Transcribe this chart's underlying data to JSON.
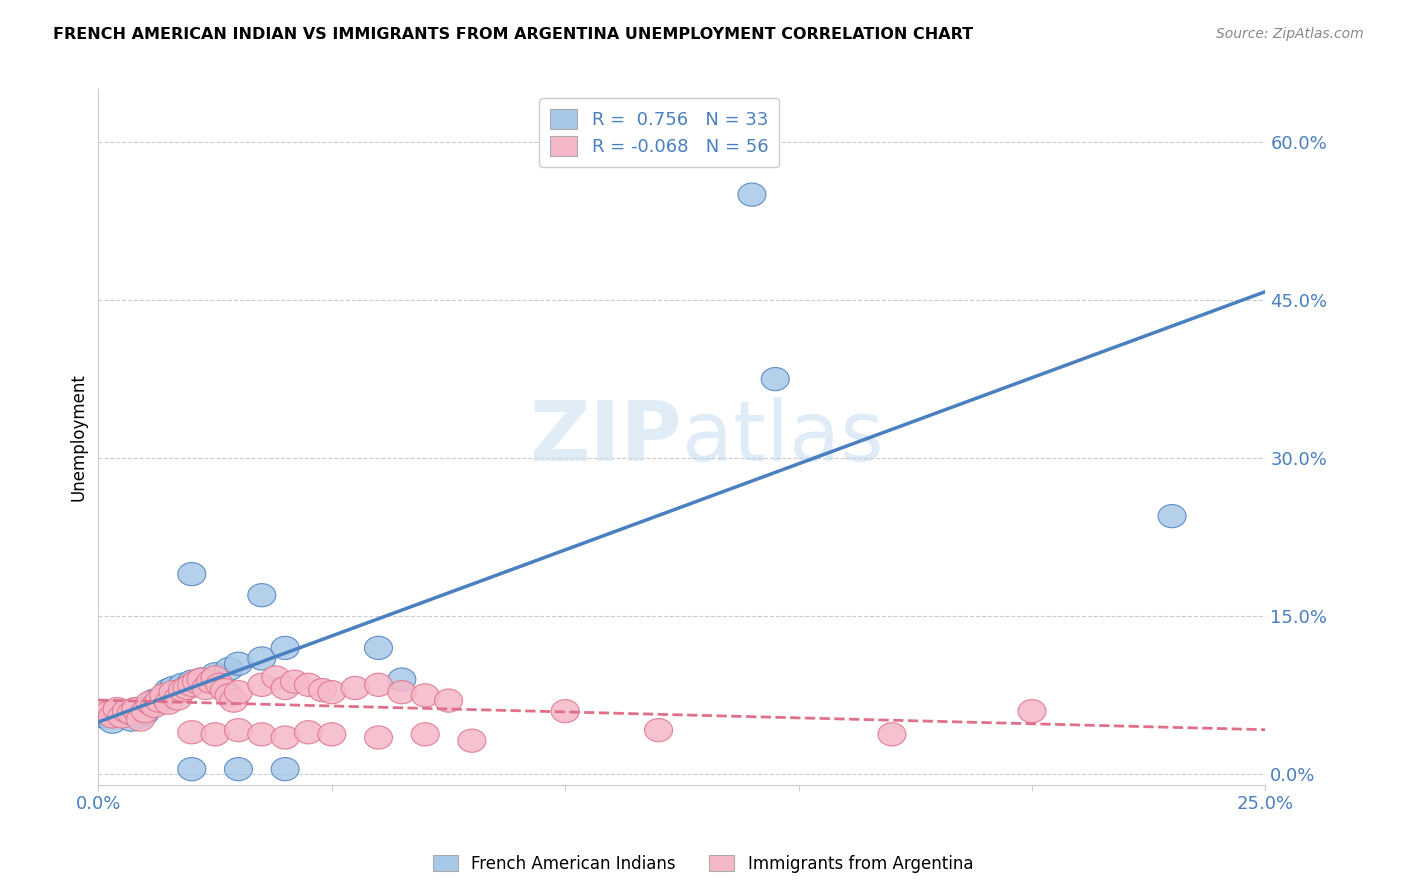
{
  "title": "FRENCH AMERICAN INDIAN VS IMMIGRANTS FROM ARGENTINA UNEMPLOYMENT CORRELATION CHART",
  "source": "Source: ZipAtlas.com",
  "ylabel": "Unemployment",
  "watermark": "ZIPatlas",
  "blue_R": 0.756,
  "blue_N": 33,
  "pink_R": -0.068,
  "pink_N": 56,
  "blue_color": "#a8c8e8",
  "pink_color": "#f5b8c8",
  "blue_line_color": "#4a7fc0",
  "pink_line_color": "#e0708a",
  "blue_scatter": [
    [
      0.001,
      0.055
    ],
    [
      0.002,
      0.055
    ],
    [
      0.003,
      0.05
    ],
    [
      0.004,
      0.06
    ],
    [
      0.005,
      0.06
    ],
    [
      0.006,
      0.058
    ],
    [
      0.007,
      0.052
    ],
    [
      0.008,
      0.062
    ],
    [
      0.009,
      0.055
    ],
    [
      0.01,
      0.058
    ],
    [
      0.011,
      0.065
    ],
    [
      0.012,
      0.07
    ],
    [
      0.013,
      0.068
    ],
    [
      0.015,
      0.08
    ],
    [
      0.016,
      0.082
    ],
    [
      0.018,
      0.085
    ],
    [
      0.02,
      0.088
    ],
    [
      0.022,
      0.09
    ],
    [
      0.025,
      0.095
    ],
    [
      0.028,
      0.1
    ],
    [
      0.03,
      0.105
    ],
    [
      0.035,
      0.11
    ],
    [
      0.04,
      0.12
    ],
    [
      0.02,
      0.19
    ],
    [
      0.035,
      0.17
    ],
    [
      0.06,
      0.12
    ],
    [
      0.065,
      0.09
    ],
    [
      0.02,
      0.005
    ],
    [
      0.03,
      0.005
    ],
    [
      0.04,
      0.005
    ],
    [
      0.14,
      0.55
    ],
    [
      0.145,
      0.375
    ],
    [
      0.23,
      0.245
    ]
  ],
  "pink_scatter": [
    [
      0.001,
      0.06
    ],
    [
      0.002,
      0.058
    ],
    [
      0.003,
      0.055
    ],
    [
      0.004,
      0.062
    ],
    [
      0.005,
      0.055
    ],
    [
      0.006,
      0.06
    ],
    [
      0.007,
      0.058
    ],
    [
      0.008,
      0.062
    ],
    [
      0.009,
      0.052
    ],
    [
      0.01,
      0.06
    ],
    [
      0.011,
      0.068
    ],
    [
      0.012,
      0.065
    ],
    [
      0.013,
      0.07
    ],
    [
      0.014,
      0.075
    ],
    [
      0.015,
      0.068
    ],
    [
      0.016,
      0.078
    ],
    [
      0.017,
      0.072
    ],
    [
      0.018,
      0.08
    ],
    [
      0.019,
      0.082
    ],
    [
      0.02,
      0.085
    ],
    [
      0.021,
      0.088
    ],
    [
      0.022,
      0.09
    ],
    [
      0.023,
      0.082
    ],
    [
      0.024,
      0.088
    ],
    [
      0.025,
      0.092
    ],
    [
      0.026,
      0.085
    ],
    [
      0.027,
      0.08
    ],
    [
      0.028,
      0.075
    ],
    [
      0.029,
      0.07
    ],
    [
      0.03,
      0.078
    ],
    [
      0.035,
      0.085
    ],
    [
      0.038,
      0.092
    ],
    [
      0.04,
      0.082
    ],
    [
      0.042,
      0.088
    ],
    [
      0.045,
      0.085
    ],
    [
      0.048,
      0.08
    ],
    [
      0.05,
      0.078
    ],
    [
      0.055,
      0.082
    ],
    [
      0.06,
      0.085
    ],
    [
      0.065,
      0.078
    ],
    [
      0.07,
      0.075
    ],
    [
      0.075,
      0.07
    ],
    [
      0.02,
      0.04
    ],
    [
      0.025,
      0.038
    ],
    [
      0.03,
      0.042
    ],
    [
      0.035,
      0.038
    ],
    [
      0.04,
      0.035
    ],
    [
      0.045,
      0.04
    ],
    [
      0.05,
      0.038
    ],
    [
      0.06,
      0.035
    ],
    [
      0.07,
      0.038
    ],
    [
      0.08,
      0.032
    ],
    [
      0.1,
      0.06
    ],
    [
      0.12,
      0.042
    ],
    [
      0.17,
      0.038
    ],
    [
      0.2,
      0.06
    ]
  ],
  "xlim": [
    0.0,
    0.25
  ],
  "ylim": [
    -0.01,
    0.65
  ],
  "yticks_right": [
    0.0,
    0.15,
    0.3,
    0.45,
    0.6
  ],
  "ytick_labels_right": [
    "0.0%",
    "15.0%",
    "30.0%",
    "45.0%",
    "60.0%"
  ],
  "xticks": [
    0.0,
    0.05,
    0.1,
    0.15,
    0.2,
    0.25
  ],
  "xtick_labels": [
    "0.0%",
    "",
    "",
    "",
    "",
    "25.0%"
  ],
  "grid_color": "#cccccc",
  "bg_color": "#ffffff"
}
